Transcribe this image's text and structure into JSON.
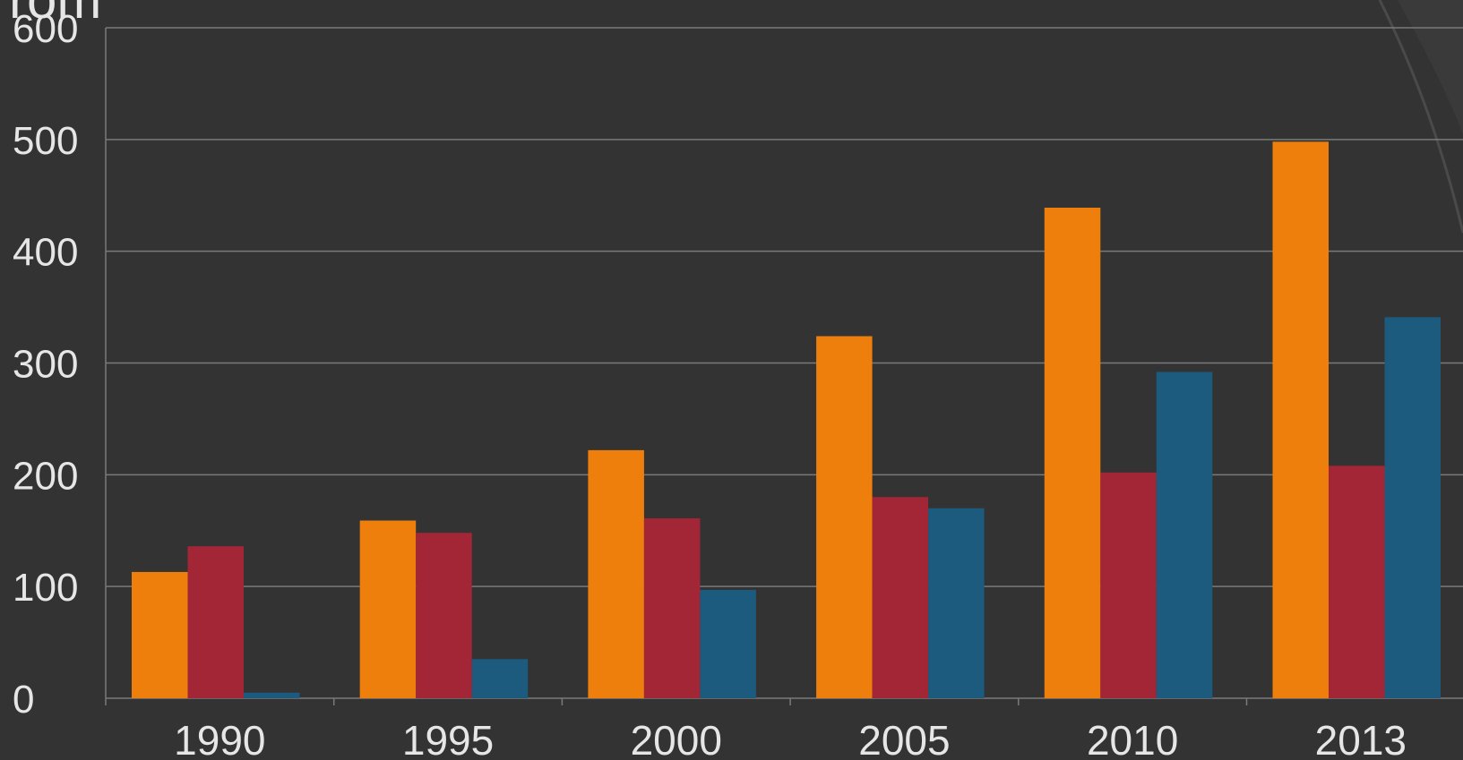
{
  "chart_data": {
    "type": "bar",
    "title": "rom",
    "categories": [
      "1990",
      "1995",
      "2000",
      "2005",
      "2010",
      "2013"
    ],
    "series": [
      {
        "color": "#ee7f0c",
        "values": [
          113,
          159,
          222,
          324,
          439,
          498
        ]
      },
      {
        "color": "#a32637",
        "values": [
          136,
          148,
          161,
          180,
          202,
          208
        ]
      },
      {
        "color": "#1c5a7e",
        "values": [
          5,
          35,
          97,
          170,
          292,
          341
        ]
      }
    ],
    "ylim": [
      0,
      600
    ],
    "yticks": [
      0,
      100,
      200,
      300,
      400,
      500,
      600
    ],
    "grid": true
  }
}
